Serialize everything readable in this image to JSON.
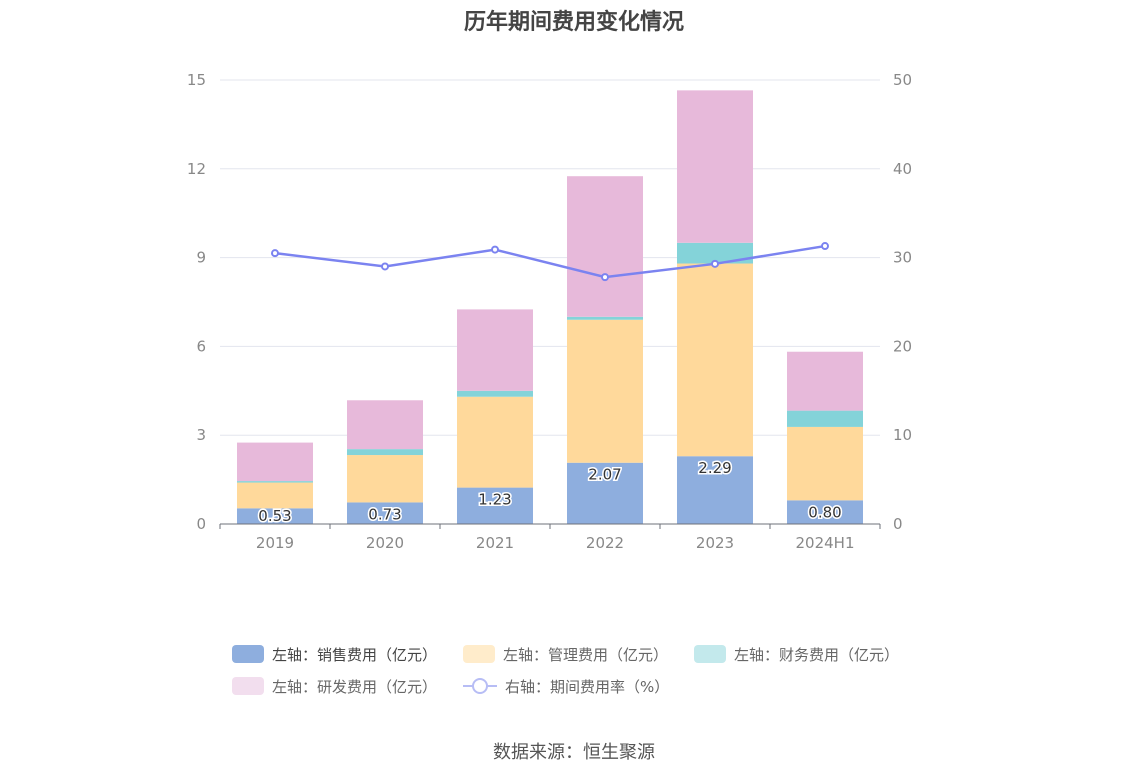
{
  "title": "历年期间费用变化情况",
  "source": "数据来源：恒生聚源",
  "legend": [
    {
      "label": "左轴：销售费用（亿元）",
      "color": "#8eaede",
      "kind": "bar"
    },
    {
      "label": "左轴：管理费用（亿元）",
      "color": "#ffeccb",
      "kind": "bar"
    },
    {
      "label": "左轴：财务费用（亿元）",
      "color": "#c3e9ec",
      "kind": "bar"
    },
    {
      "label": "左轴：研发费用（亿元）",
      "color": "#f2deee",
      "kind": "bar"
    },
    {
      "label": "右轴：期间费用率（%）",
      "color": "#b7bdf5",
      "kind": "line"
    }
  ],
  "chart_data": {
    "type": "bar",
    "stacked": true,
    "categories": [
      "2019",
      "2020",
      "2021",
      "2022",
      "2023",
      "2024H1"
    ],
    "series": [
      {
        "name": "左轴：销售费用（亿元）",
        "axis": "left",
        "color": "#8eaede",
        "values": [
          0.53,
          0.73,
          1.23,
          2.07,
          2.29,
          0.8
        ],
        "labels": [
          "0.53",
          "0.73",
          "1.23",
          "2.07",
          "2.29",
          "0.80"
        ]
      },
      {
        "name": "左轴：管理费用（亿元）",
        "axis": "left",
        "color": "#ffd99b",
        "values": [
          0.87,
          1.6,
          3.07,
          4.83,
          6.51,
          2.48
        ]
      },
      {
        "name": "左轴：财务费用（亿元）",
        "axis": "left",
        "color": "#84d3d9",
        "values": [
          0.05,
          0.2,
          0.2,
          0.1,
          0.7,
          0.55
        ]
      },
      {
        "name": "左轴：研发费用（亿元）",
        "axis": "left",
        "color": "#e7b9da",
        "values": [
          1.3,
          1.65,
          2.75,
          4.75,
          5.15,
          1.99
        ]
      },
      {
        "name": "右轴：期间费用率（%）",
        "axis": "right",
        "type": "line",
        "color": "#7b83f0",
        "values": [
          30.5,
          29.0,
          30.9,
          27.8,
          29.3,
          31.3
        ]
      }
    ],
    "left_axis": {
      "min": 0,
      "max": 15,
      "ticks": [
        "0",
        "3",
        "6",
        "9",
        "12",
        "15"
      ]
    },
    "right_axis": {
      "min": 0,
      "max": 50,
      "ticks": [
        "0",
        "10",
        "20",
        "30",
        "40",
        "50"
      ]
    },
    "grid": true,
    "legend_position": "bottom"
  }
}
